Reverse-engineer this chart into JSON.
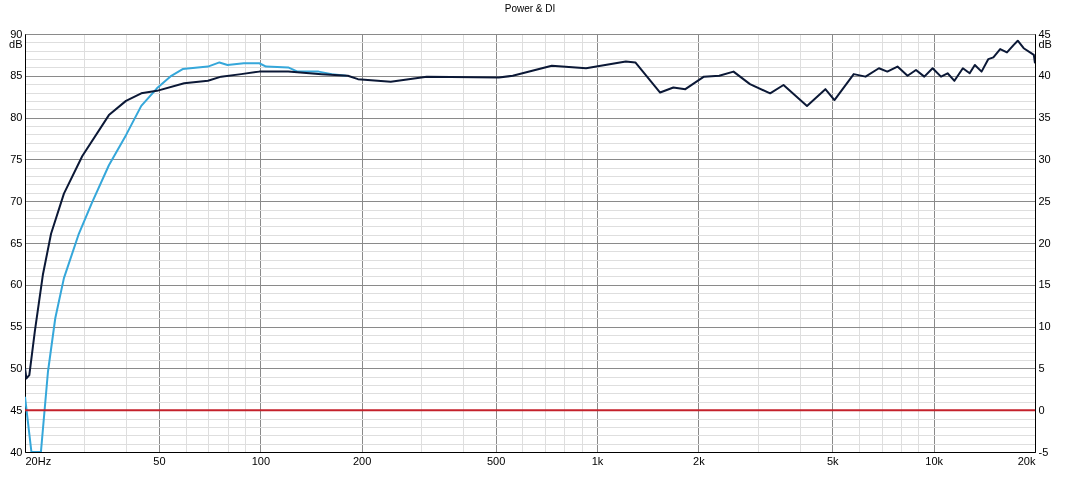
{
  "chart_data": {
    "type": "line",
    "title": "Power & DI",
    "ylabel": "dB",
    "y2label": "dB",
    "grid": true,
    "log": "x",
    "xlim": [
      20,
      20000
    ],
    "xticks": [
      {
        "value": 20,
        "label": "20Hz"
      },
      {
        "value": 30,
        "label": null
      },
      {
        "value": 40,
        "label": null
      },
      50,
      {
        "value": 60,
        "label": null
      },
      {
        "value": 70,
        "label": null
      },
      {
        "value": 80,
        "label": null
      },
      {
        "value": 90,
        "label": null
      },
      100,
      200,
      {
        "value": 300,
        "label": null
      },
      {
        "value": 400,
        "label": null
      },
      500,
      {
        "value": 600,
        "label": null
      },
      {
        "value": 700,
        "label": null
      },
      {
        "value": 800,
        "label": null
      },
      {
        "value": 900,
        "label": null
      },
      {
        "value": 1000,
        "label": "1k"
      },
      {
        "value": 2000,
        "label": "2k"
      },
      {
        "value": 3000,
        "label": null
      },
      {
        "value": 4000,
        "label": null
      },
      {
        "value": 5000,
        "label": "5k"
      },
      {
        "value": 6000,
        "label": null
      },
      {
        "value": 7000,
        "label": null
      },
      {
        "value": 8000,
        "label": null
      },
      {
        "value": 9000,
        "label": null
      },
      {
        "value": 10000,
        "label": "10k"
      },
      {
        "value": 20000,
        "label": "20k"
      }
    ],
    "ylim": [
      40,
      90
    ],
    "yticks": [
      40,
      {
        "value": 41,
        "label": null
      },
      {
        "value": 42,
        "label": null
      },
      {
        "value": 43,
        "label": null
      },
      {
        "value": 44,
        "label": null
      },
      45,
      {
        "value": 46,
        "label": null
      },
      {
        "value": 47,
        "label": null
      },
      {
        "value": 48,
        "label": null
      },
      {
        "value": 49,
        "label": null
      },
      50,
      {
        "value": 51,
        "label": null
      },
      {
        "value": 52,
        "label": null
      },
      {
        "value": 53,
        "label": null
      },
      {
        "value": 54,
        "label": null
      },
      55,
      {
        "value": 56,
        "label": null
      },
      {
        "value": 57,
        "label": null
      },
      {
        "value": 58,
        "label": null
      },
      {
        "value": 59,
        "label": null
      },
      60,
      {
        "value": 61,
        "label": null
      },
      {
        "value": 62,
        "label": null
      },
      {
        "value": 63,
        "label": null
      },
      {
        "value": 64,
        "label": null
      },
      65,
      {
        "value": 66,
        "label": null
      },
      {
        "value": 67,
        "label": null
      },
      {
        "value": 68,
        "label": null
      },
      {
        "value": 69,
        "label": null
      },
      70,
      {
        "value": 71,
        "label": null
      },
      {
        "value": 72,
        "label": null
      },
      {
        "value": 73,
        "label": null
      },
      {
        "value": 74,
        "label": null
      },
      75,
      {
        "value": 76,
        "label": null
      },
      {
        "value": 77,
        "label": null
      },
      {
        "value": 78,
        "label": null
      },
      {
        "value": 79,
        "label": null
      },
      80,
      {
        "value": 81,
        "label": null
      },
      {
        "value": 82,
        "label": null
      },
      {
        "value": 83,
        "label": null
      },
      {
        "value": 84,
        "label": null
      },
      85,
      {
        "value": 86,
        "label": null
      },
      {
        "value": 87,
        "label": null
      },
      {
        "value": 88,
        "label": null
      },
      {
        "value": 89,
        "label": null
      },
      90
    ],
    "y2lim": [
      -5,
      45
    ],
    "y2ticks": [
      -5,
      0,
      5,
      10,
      15,
      20,
      25,
      30,
      35,
      40,
      45
    ],
    "series": [
      {
        "color": "#35a7da",
        "x": [
          20,
          20.9,
          22.3,
          23.4,
          24.6,
          26.1,
          28.9,
          31.6,
          35.5,
          39.9,
          44.3,
          49.3,
          54.4,
          58.8,
          69.9,
          75.6,
          79.9,
          89.3,
          99.3,
          104,
          121,
          129,
          149,
          163,
          180
        ],
        "values": [
          46.6,
          40,
          40,
          49.6,
          56.0,
          60.8,
          66.1,
          69.8,
          74.3,
          77.9,
          81.4,
          83.5,
          85.0,
          85.8,
          86.1,
          86.6,
          86.3,
          86.5,
          86.5,
          86.1,
          86.0,
          85.5,
          85.5,
          85.2,
          85.0
        ]
      },
      {
        "color": "#0b1836",
        "x": [
          20,
          20.2,
          20.6,
          21.4,
          22.6,
          23.9,
          26.1,
          29.6,
          35.5,
          39.9,
          44.3,
          49.3,
          59.4,
          69.9,
          76.5,
          87.7,
          99.3,
          121,
          152,
          182,
          195,
          244,
          312,
          511,
          562,
          734,
          928,
          1218,
          1300,
          1540,
          1686,
          1830,
          2078,
          2307,
          2544,
          2847,
          3268,
          3581,
          4205,
          4768,
          5074,
          5789,
          6277,
          6877,
          7285,
          7808,
          8365,
          8862,
          9380,
          9929,
          10515,
          11000,
          11527,
          12211,
          12792,
          13253,
          13878,
          14538,
          15046,
          15760,
          16510,
          17294,
          17776,
          18510,
          19842,
          20000
        ],
        "values": [
          50.0,
          48.8,
          49.2,
          54.5,
          61.2,
          66.1,
          70.9,
          75.4,
          80.3,
          82.0,
          82.9,
          83.2,
          84.1,
          84.4,
          84.9,
          85.2,
          85.5,
          85.5,
          85.2,
          85.0,
          84.6,
          84.3,
          84.9,
          84.8,
          85.0,
          86.2,
          85.9,
          86.7,
          86.6,
          83.0,
          83.6,
          83.4,
          84.9,
          85.0,
          85.5,
          84.0,
          82.9,
          83.9,
          81.4,
          83.4,
          82.1,
          85.2,
          84.9,
          85.9,
          85.5,
          86.1,
          85.0,
          85.7,
          84.9,
          85.9,
          84.9,
          85.3,
          84.4,
          85.9,
          85.3,
          86.3,
          85.5,
          87.0,
          87.2,
          88.2,
          87.8,
          88.7,
          89.2,
          88.3,
          87.5,
          86.5
        ]
      },
      {
        "color": "#c4212b",
        "axis": "y2",
        "x": [
          20,
          20000
        ],
        "values": [
          0,
          0
        ]
      }
    ]
  }
}
